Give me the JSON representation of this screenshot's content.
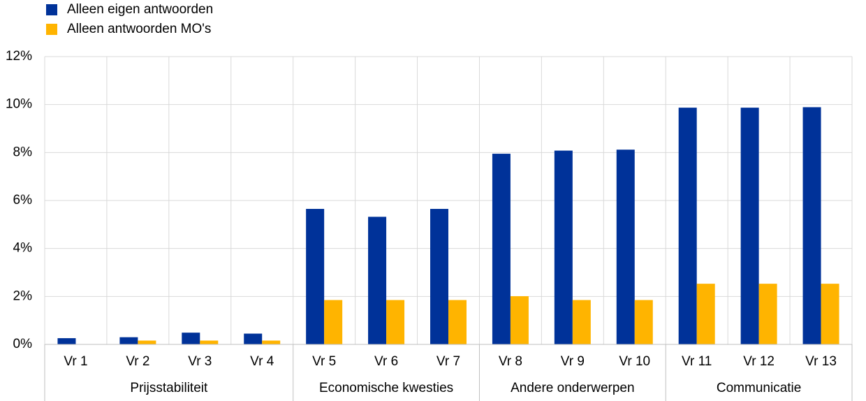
{
  "chart_data": {
    "type": "bar",
    "categories": [
      "Vr 1",
      "Vr 2",
      "Vr 3",
      "Vr 4",
      "Vr 5",
      "Vr 6",
      "Vr 7",
      "Vr 8",
      "Vr 9",
      "Vr 10",
      "Vr 11",
      "Vr 12",
      "Vr 13"
    ],
    "groups": [
      {
        "name": "Prijsstabiliteit",
        "span": 4
      },
      {
        "name": "Economische kwesties",
        "span": 3
      },
      {
        "name": "Andere onderwerpen",
        "span": 3
      },
      {
        "name": "Communicatie",
        "span": 3
      }
    ],
    "series": [
      {
        "name": "Alleen eigen antwoorden",
        "color": "#003299",
        "values": [
          0.26,
          0.3,
          0.49,
          0.45,
          5.65,
          5.32,
          5.65,
          7.95,
          8.08,
          8.12,
          9.87,
          9.87,
          9.89
        ]
      },
      {
        "name": "Alleen antwoorden MO's",
        "color": "#ffb400",
        "values": [
          0,
          0.16,
          0.16,
          0.16,
          1.85,
          1.85,
          1.85,
          2.01,
          1.85,
          1.85,
          2.53,
          2.53,
          2.53
        ]
      }
    ],
    "ylim": [
      0,
      12
    ],
    "yticks": [
      {
        "value": 0,
        "label": "0%"
      },
      {
        "value": 2,
        "label": "2%"
      },
      {
        "value": 4,
        "label": "4%"
      },
      {
        "value": 6,
        "label": "6%"
      },
      {
        "value": 8,
        "label": "8%"
      },
      {
        "value": 10,
        "label": "10%"
      },
      {
        "value": 12,
        "label": "12%"
      }
    ],
    "grid": true
  }
}
